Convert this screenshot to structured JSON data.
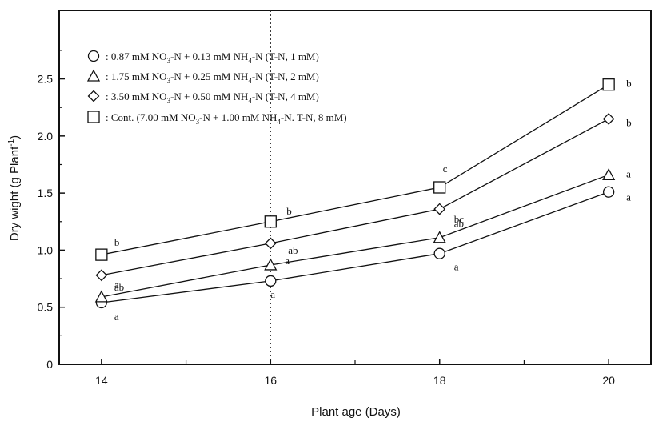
{
  "chart_data": {
    "type": "line",
    "xlabel": "Plant age (Days)",
    "ylabel_main": "Dry wight (g Plant",
    "ylabel_sup": "-1",
    "ylabel_end": ")",
    "x": [
      14,
      16,
      18,
      20
    ],
    "x_ticks": [
      "14",
      "16",
      "18",
      "20"
    ],
    "y_ticks": [
      "0",
      "0.5",
      "1.0",
      "1.5",
      "2.0",
      "2.5"
    ],
    "xlim": [
      13.5,
      20.5
    ],
    "ylim": [
      0,
      3.1
    ],
    "grid": false,
    "vertical_marker_x": 16,
    "legend_placement": "top-left",
    "series": [
      {
        "marker": "circle",
        "values": [
          0.54,
          0.73,
          0.97,
          1.51
        ],
        "sig": [
          "a",
          "a",
          "a",
          "a"
        ],
        "legend": [
          {
            "t": ": 0.87 mM NO",
            "s": ""
          },
          {
            "t": "3",
            "s": "sub"
          },
          {
            "t": "-N + 0.13 mM NH",
            "s": ""
          },
          {
            "t": "4",
            "s": "sub"
          },
          {
            "t": "-N (T-N, 1 mM)",
            "s": ""
          }
        ]
      },
      {
        "marker": "triangle",
        "values": [
          0.59,
          0.87,
          1.11,
          1.66
        ],
        "sig": [
          "a",
          "a",
          "ab",
          "a"
        ],
        "legend": [
          {
            "t": ": 1.75 mM NO",
            "s": ""
          },
          {
            "t": "3",
            "s": "sub"
          },
          {
            "t": "-N + 0.25 mM NH",
            "s": ""
          },
          {
            "t": "4",
            "s": "sub"
          },
          {
            "t": "-N (T-N, 2 mM)",
            "s": ""
          }
        ]
      },
      {
        "marker": "diamond",
        "values": [
          0.78,
          1.06,
          1.36,
          2.15
        ],
        "sig": [
          "ab",
          "ab",
          "bc",
          "b"
        ],
        "legend": [
          {
            "t": ": 3.50 mM NO",
            "s": ""
          },
          {
            "t": "3",
            "s": "sub"
          },
          {
            "t": "-N + 0.50 mM NH",
            "s": ""
          },
          {
            "t": "4",
            "s": "sub"
          },
          {
            "t": "-N (T-N, 4 mM)",
            "s": ""
          }
        ]
      },
      {
        "marker": "square",
        "values": [
          0.96,
          1.25,
          1.55,
          2.45
        ],
        "sig": [
          "b",
          "b",
          "c",
          "b"
        ],
        "legend": [
          {
            "t": ": Cont. (7.00 mM NO",
            "s": ""
          },
          {
            "t": "3",
            "s": "sub"
          },
          {
            "t": "-N + 1.00 mM NH",
            "s": ""
          },
          {
            "t": "4",
            "s": "sub"
          },
          {
            "t": "-N.  T-N, 8 mM)",
            "s": ""
          }
        ]
      }
    ]
  }
}
